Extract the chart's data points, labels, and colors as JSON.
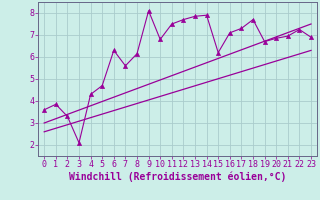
{
  "background_color": "#cceee8",
  "grid_color": "#aacccc",
  "line_color": "#990099",
  "spine_color": "#666688",
  "xlim": [
    -0.5,
    23.5
  ],
  "ylim": [
    1.5,
    8.5
  ],
  "yticks": [
    2,
    3,
    4,
    5,
    6,
    7,
    8
  ],
  "xticks": [
    0,
    1,
    2,
    3,
    4,
    5,
    6,
    7,
    8,
    9,
    10,
    11,
    12,
    13,
    14,
    15,
    16,
    17,
    18,
    19,
    20,
    21,
    22,
    23
  ],
  "xlabel": "Windchill (Refroidissement éolien,°C)",
  "zigzag_x": [
    0,
    1,
    2,
    3,
    4,
    5,
    6,
    7,
    8,
    9,
    10,
    11,
    12,
    13,
    14,
    15,
    16,
    17,
    18,
    19,
    20,
    21,
    22,
    23
  ],
  "zigzag_y": [
    3.6,
    3.85,
    3.3,
    2.1,
    4.3,
    4.7,
    6.3,
    5.6,
    6.15,
    8.1,
    6.8,
    7.5,
    7.7,
    7.85,
    7.9,
    6.2,
    7.1,
    7.3,
    7.7,
    6.7,
    6.85,
    6.95,
    7.25,
    6.9
  ],
  "line1_x": [
    0,
    23
  ],
  "line1_y": [
    3.0,
    7.5
  ],
  "line2_x": [
    0,
    23
  ],
  "line2_y": [
    2.6,
    6.3
  ],
  "marker": "^",
  "marker_size": 3,
  "tick_fontsize": 6,
  "xlabel_fontsize": 7
}
